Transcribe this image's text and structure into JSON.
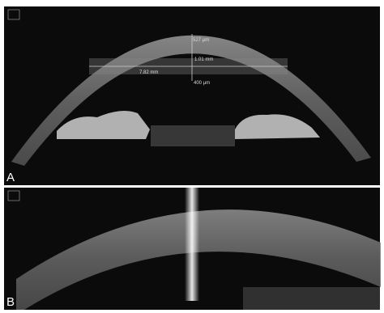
{
  "panels": [
    {
      "label": "A",
      "measurements": [
        "527 µm",
        "1.01 mm",
        "7.82 mm",
        "400 µm"
      ]
    },
    {
      "label": "B"
    }
  ]
}
